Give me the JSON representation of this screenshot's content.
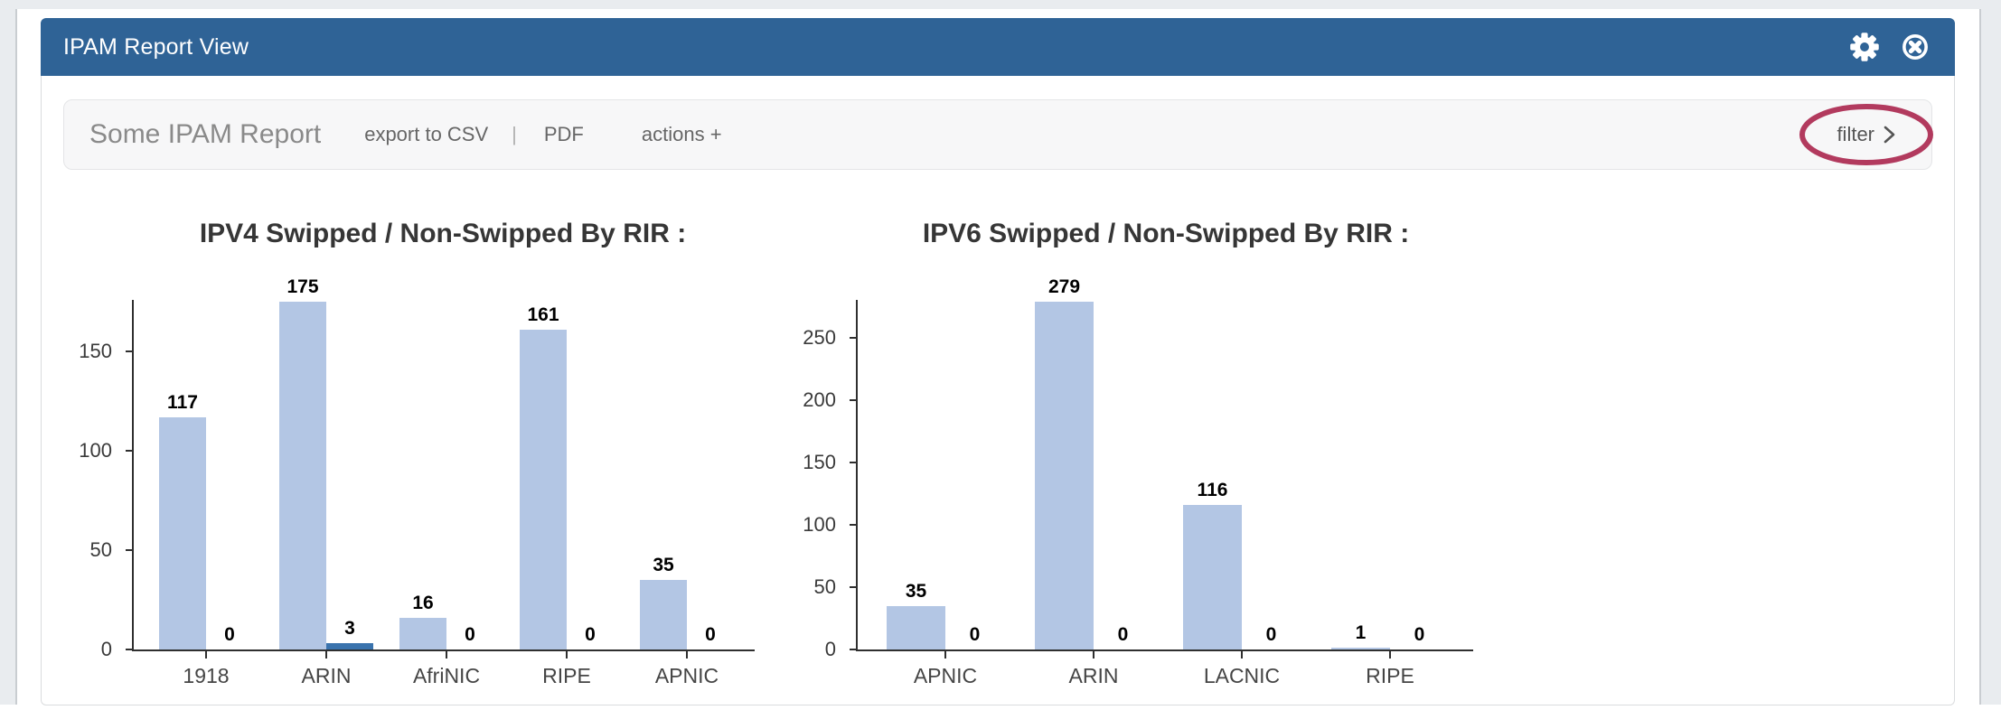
{
  "window": {
    "title": "IPAM Report View",
    "header_icons": [
      "gear-icon",
      "close-circle-icon"
    ]
  },
  "toolbar": {
    "report_title": "Some IPAM Report",
    "export_csv_label": "export to CSV",
    "divider": "|",
    "pdf_label": "PDF",
    "actions_label": "actions +",
    "filter_label": "filter",
    "filter_chevron": "chevron-right-icon"
  },
  "annotation": {
    "type": "ellipse-highlight",
    "around": "filter",
    "color": "#b23a5e"
  },
  "colors": {
    "header_bg": "#2f6396",
    "page_bg": "#e9ecef",
    "toolbar_bg": "#f7f7f8",
    "bar_swipped": "#b3c6e4",
    "bar_non_swipped": "#3a73ad",
    "axis": "#2f2f2f",
    "annotation": "#b23a5e"
  },
  "chart_data": [
    {
      "type": "bar",
      "title": "IPV4 Swipped / Non-Swipped By RIR :",
      "categories": [
        "1918",
        "ARIN",
        "AfriNIC",
        "RIPE",
        "APNIC"
      ],
      "series": [
        {
          "name": "Swipped",
          "values": [
            117,
            175,
            16,
            161,
            35
          ]
        },
        {
          "name": "Non-Swipped",
          "values": [
            0,
            3,
            0,
            0,
            0
          ]
        }
      ],
      "yticks": [
        0,
        50,
        100,
        150
      ],
      "ylim": [
        0,
        175
      ],
      "colors": {
        "swipped": "#b3c6e4",
        "non_swipped": "#3a73ad"
      },
      "legend": "none",
      "grid": false,
      "value_labels": true
    },
    {
      "type": "bar",
      "title": "IPV6 Swipped / Non-Swipped By RIR :",
      "categories": [
        "APNIC",
        "ARIN",
        "LACNIC",
        "RIPE"
      ],
      "series": [
        {
          "name": "Swipped",
          "values": [
            35,
            279,
            116,
            1
          ]
        },
        {
          "name": "Non-Swipped",
          "values": [
            0,
            0,
            0,
            0
          ]
        }
      ],
      "yticks": [
        0,
        50,
        100,
        150,
        200,
        250
      ],
      "ylim": [
        0,
        279
      ],
      "colors": {
        "swipped": "#b3c6e4",
        "non_swipped": "#3a73ad"
      },
      "legend": "none",
      "grid": false,
      "value_labels": true
    }
  ]
}
